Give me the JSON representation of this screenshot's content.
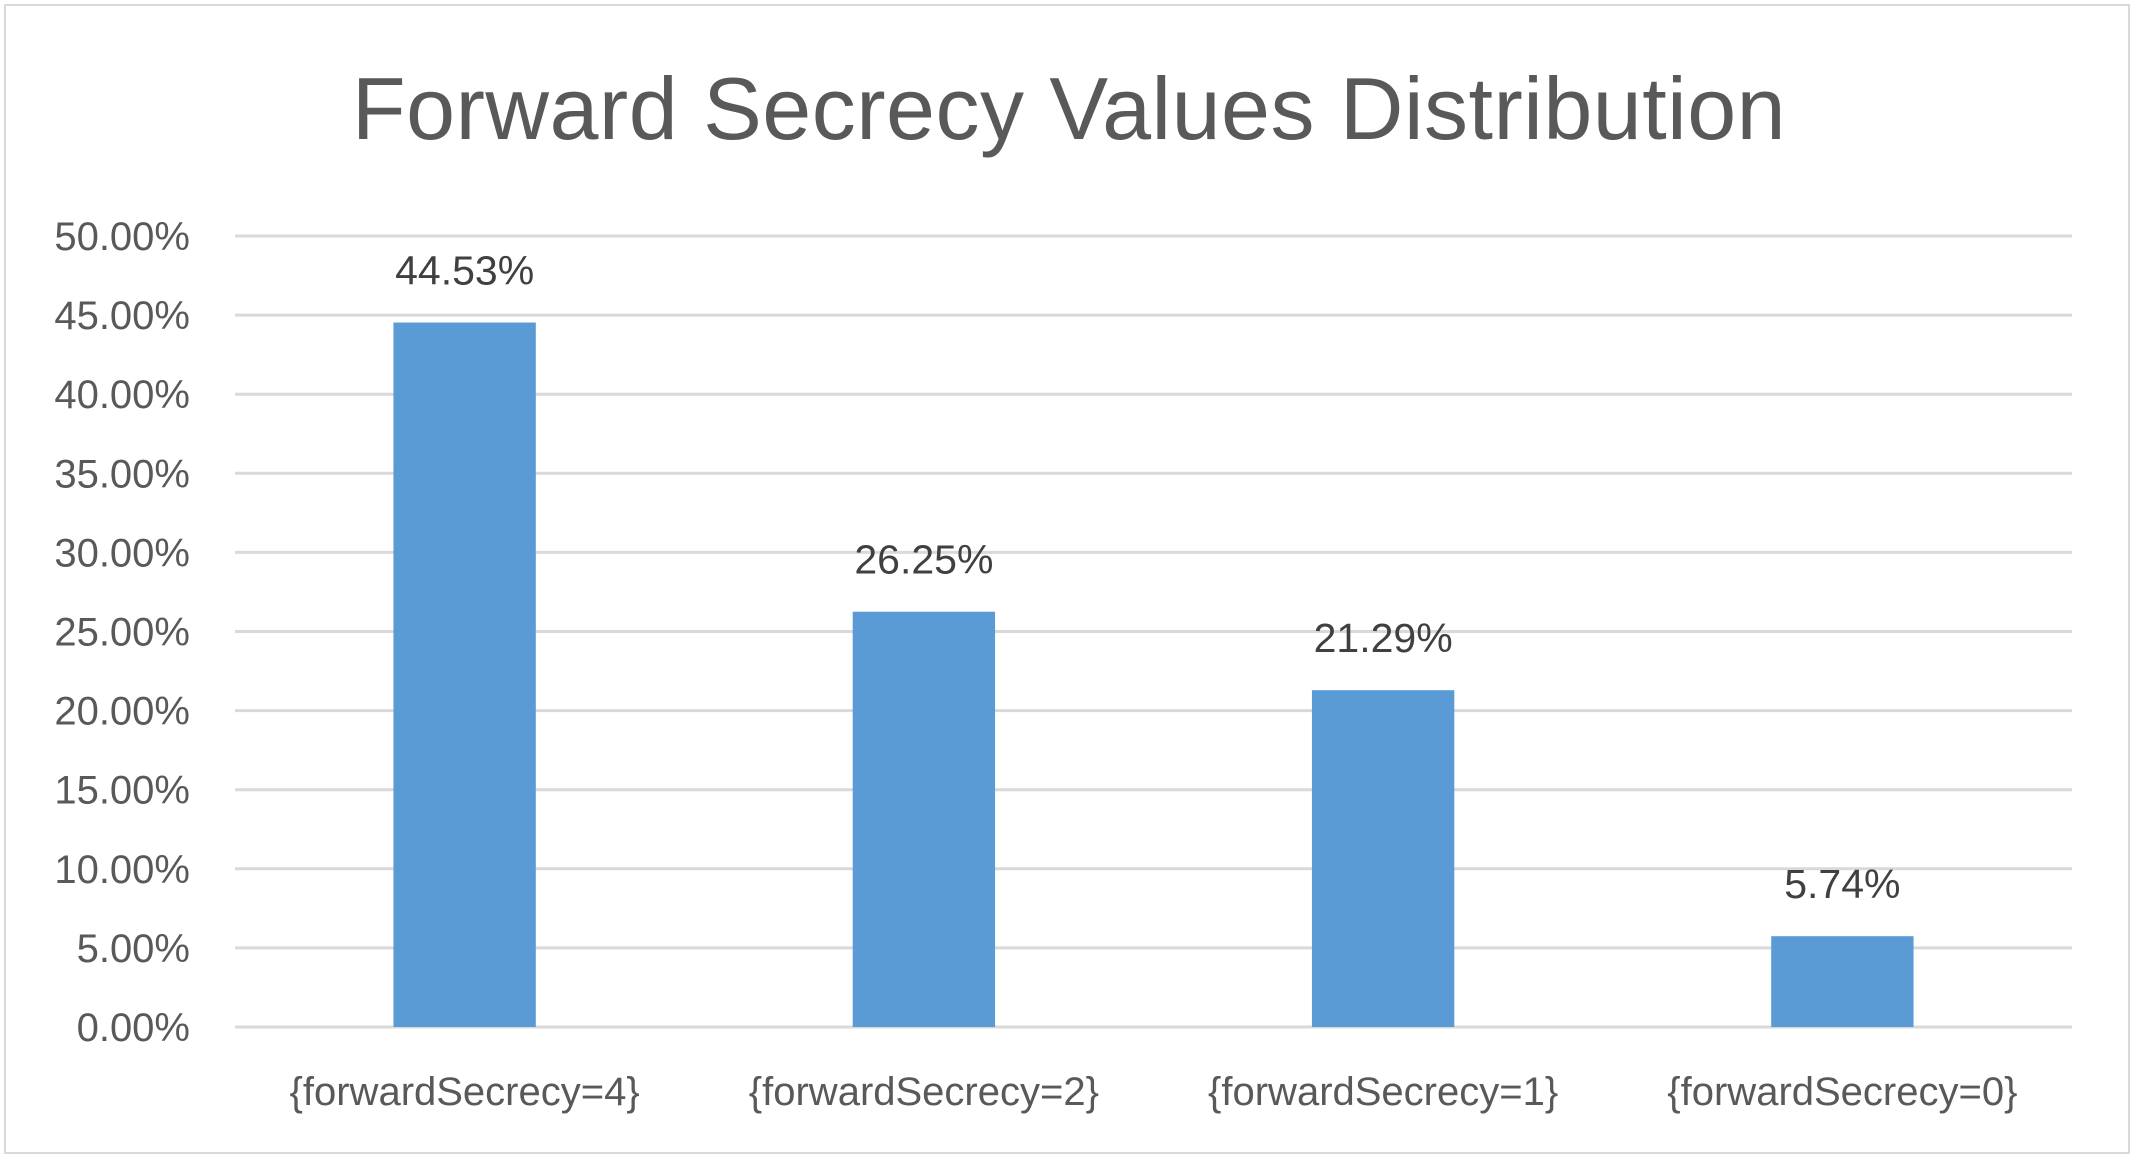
{
  "chart_data": {
    "type": "bar",
    "title": "Forward Secrecy Values Distribution",
    "categories": [
      "{forwardSecrecy=4}",
      "{forwardSecrecy=2}",
      "{forwardSecrecy=1}",
      "{forwardSecrecy=0}"
    ],
    "values": [
      44.53,
      26.25,
      21.29,
      5.74
    ],
    "data_labels": [
      "44.53%",
      "26.25%",
      "21.29%",
      "5.74%"
    ],
    "ylim": [
      0,
      50
    ],
    "yticks": [
      0,
      5,
      10,
      15,
      20,
      25,
      30,
      35,
      40,
      45,
      50
    ],
    "ytick_labels": [
      "0.00%",
      "5.00%",
      "10.00%",
      "15.00%",
      "20.00%",
      "25.00%",
      "30.00%",
      "35.00%",
      "40.00%",
      "45.00%",
      "50.00%"
    ],
    "xlabel": "",
    "ylabel": "",
    "grid": true,
    "legend": "none",
    "colors": {
      "bar": "#5b9bd5",
      "grid": "#d9d9d9",
      "text": "#595959",
      "data_label": "#404040"
    }
  }
}
